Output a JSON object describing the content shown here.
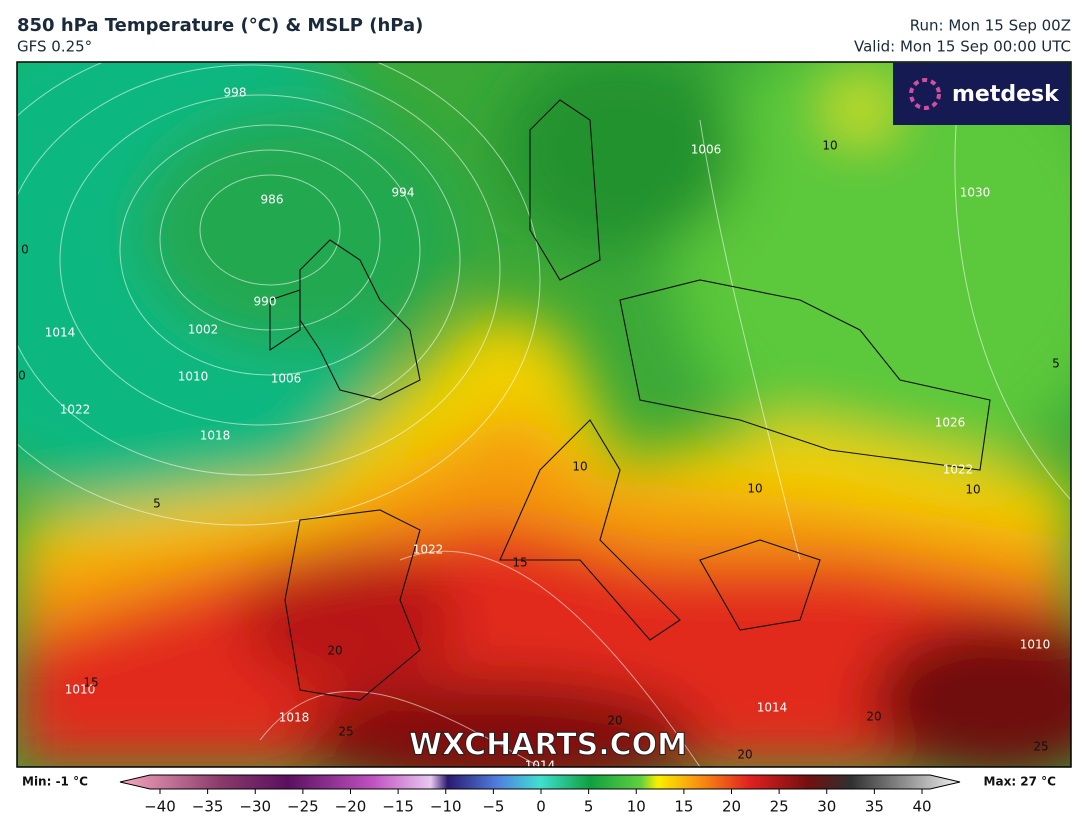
{
  "header": {
    "title": "850 hPa Temperature (°C) & MSLP (hPa)",
    "model": "GFS 0.25°",
    "run": "Run: Mon 15 Sep 00Z",
    "valid": "Valid: Mon 15 Sep 00:00 UTC"
  },
  "logo": "metdesk",
  "watermark": "WXCHARTS.COM",
  "isobar_labels": [
    "998",
    "986",
    "994",
    "990",
    "1002",
    "1014",
    "1010",
    "1006",
    "1022",
    "1018",
    "1006",
    "1030",
    "1026",
    "1022",
    "1022",
    "1018",
    "1014",
    "1014",
    "1010",
    "1010"
  ],
  "isotherm_labels": [
    "10",
    "10",
    "10",
    "10",
    "5",
    "5",
    "0",
    "0",
    "15",
    "15",
    "20",
    "20",
    "20",
    "20",
    "25",
    "25"
  ],
  "colorbar": {
    "min": "Min: -1 °C",
    "max": "Max: 27 °C",
    "ticks": [
      {
        "value": -40,
        "label": "−40"
      },
      {
        "value": -35,
        "label": "−35"
      },
      {
        "value": -30,
        "label": "−30"
      },
      {
        "value": -25,
        "label": "−25"
      },
      {
        "value": -20,
        "label": "−20"
      },
      {
        "value": -15,
        "label": "−15"
      },
      {
        "value": -10,
        "label": "−10"
      },
      {
        "value": -5,
        "label": "−5"
      },
      0,
      5,
      10,
      15,
      20,
      25,
      30,
      35,
      40
    ],
    "lim": [
      -40,
      40
    ]
  }
}
